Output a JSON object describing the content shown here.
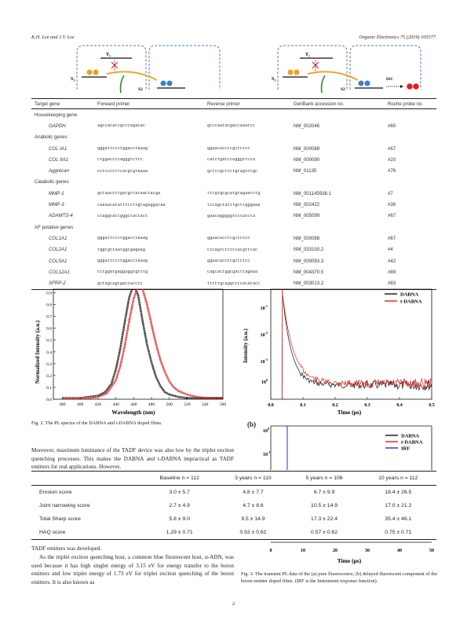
{
  "header": {
    "authors": "K.H. Lee and J.Y. Lee",
    "journal": "Organic Electronics 75 (2019) 105377"
  },
  "scheme": {
    "t1": "T",
    "t1_sub": "1",
    "s1": "S",
    "s1_sub": "1",
    "s2": "S2",
    "isc": "ISC"
  },
  "table1": {
    "headers": [
      "Target gene",
      "Forward primer",
      "Reverse primer",
      "GenBank accession no.",
      "Roche probe no."
    ],
    "groups": [
      {
        "title": "Housekeeping gene",
        "rows": [
          [
            "GAPDH",
            "agccacatcgctcagacac",
            "gcccaatacgaccaaatcc",
            "NM_002046",
            "#60"
          ]
        ]
      },
      {
        "title": "Anabolic genes",
        "rows": [
          [
            "COL IA1",
            "gggattccctggacctaaag",
            "ggaacacctcgctctcc",
            "NM_000088",
            "#67"
          ],
          [
            "COL IIA1",
            "ctggaccccagggtcttc",
            "catctgatccagggttcca",
            "NM_000090",
            "#20"
          ],
          [
            "Aggrecan",
            "cctccccttcacgtgtaaaa",
            "gctccgcttctgtagtctgc",
            "NM_01135",
            "#76"
          ]
        ]
      },
      {
        "title": "Catabolic genes",
        "rows": [
          [
            "MMP-1",
            "gctaaccttgatgctataactacga",
            "tttgtgcgcatgtagaatctg",
            "NM_001145938.1",
            "#7"
          ],
          [
            "MMP-3",
            "caaaacatatttctttgtagaggacaa",
            "ttcagctatttgcttgggaaa",
            "NM_002422",
            "#36"
          ],
          [
            "ADAMTS-4",
            "ccaggcactgggctactact",
            "gaacagggggtcccatcta",
            "NM_005099",
            "#67"
          ]
        ]
      },
      {
        "title": "AF putative genes",
        "rows": [
          [
            "COL1A1",
            "gggattccctggacctaaag",
            "ggaacacctcgctctcc",
            "NM_000088",
            "#67"
          ],
          [
            "COL2A1",
            "tggtgctaatggcgagaag",
            "cccagtctctccacgttcac",
            "NM_033150.2",
            "#4"
          ],
          [
            "COL5A1",
            "gggattccctggacctaaag",
            "ggaacacctcgctctcc",
            "NM_000093.3",
            "#42"
          ],
          [
            "COL12A1",
            "cctggatgaggaggtgtttg",
            "cagcactggcgacttagaaa",
            "NM_004370.5",
            "#89"
          ],
          [
            "SFRP-2",
            "gctagcagcgaccacctc",
            "tttttgcaggcttcacatacc",
            "NM_003013.2",
            "#83"
          ]
        ]
      }
    ]
  },
  "figure2": {
    "caption": "Fig. 2. The PL spectra of the DABNA and t-DABNA doped films.",
    "chart_data": {
      "type": "line",
      "xlabel": "Wavelength (nm)",
      "ylabel": "Normalized Intensity (a.u.)",
      "xlim": [
        370,
        560
      ],
      "ylim": [
        0,
        0.93
      ],
      "x_ticks": [
        "380",
        "400",
        "420",
        "440",
        "460",
        "480",
        "500",
        "520",
        "540",
        "560"
      ],
      "y_ticks": [
        "0.0",
        "0.1",
        "0.2",
        "0.3",
        "0.4",
        "0.5",
        "0.6",
        "0.7",
        "0.8",
        "0.9"
      ],
      "series": [
        {
          "color": "#111111",
          "x": [
            380,
            400,
            410,
            420,
            428,
            435,
            440,
            445,
            450,
            455,
            460,
            465,
            470,
            475,
            480,
            485,
            490,
            495,
            500,
            510,
            520,
            530,
            540,
            550,
            560
          ],
          "y": [
            0.01,
            0.01,
            0.02,
            0.03,
            0.06,
            0.13,
            0.25,
            0.43,
            0.65,
            0.86,
            0.97,
            0.88,
            0.66,
            0.46,
            0.31,
            0.19,
            0.11,
            0.06,
            0.04,
            0.02,
            0.01,
            0.01,
            0.01,
            0.01,
            0.01
          ]
        },
        {
          "color": "#e02020",
          "x": [
            380,
            400,
            410,
            420,
            430,
            440,
            445,
            450,
            455,
            460,
            465,
            470,
            475,
            480,
            485,
            490,
            495,
            500,
            505,
            510,
            520,
            530,
            540,
            550,
            560
          ],
          "y": [
            0.01,
            0.01,
            0.01,
            0.02,
            0.05,
            0.16,
            0.28,
            0.45,
            0.66,
            0.85,
            0.96,
            0.93,
            0.8,
            0.63,
            0.47,
            0.33,
            0.23,
            0.15,
            0.1,
            0.07,
            0.04,
            0.02,
            0.01,
            0.01,
            0.01
          ]
        }
      ]
    }
  },
  "figure3a": {
    "chart_data": {
      "type": "line",
      "xlabel": "Time (μs)",
      "ylabel": "Intensity (a.u.)",
      "xlim": [
        0,
        0.5
      ],
      "x_ticks": [
        "0.0",
        "0.1",
        "0.2",
        "0.3",
        "0.4",
        "0.5"
      ],
      "y_ticks_exp": [
        "-1",
        "-2",
        "-3",
        "0"
      ],
      "series": [
        {
          "name": "DABNA",
          "color": "#111111"
        },
        {
          "name": "t-DABNA",
          "color": "#e02020"
        }
      ]
    }
  },
  "figure3b": {
    "panel": "(b)",
    "y_ticks_exp": [
      "0",
      "-1"
    ],
    "x_ticks": [
      "0",
      "10",
      "20",
      "30",
      "40",
      "50"
    ],
    "xlabel": "Time (μs)",
    "legend": [
      {
        "name": "DABNA",
        "color": "#111111"
      },
      {
        "name": "t-DABNA",
        "color": "#e02020"
      },
      {
        "name": "IRF",
        "color": "#2233cc"
      }
    ]
  },
  "figure3_caption": "Fig. 3. The transient PL data of the (a) pure fluorescence, (b) delayed fluorescent component of the boron emitter doped films. (IRF is the Instrument response function).",
  "text": {
    "para1": "Moreover, maximum luminance of the TADF device was also low by the triplet exciton quenching processes. This makes the DABNA and t-DABNA impractical as TADF emitters for real applications. However,",
    "para2_top": "TADF emitters was developed.",
    "para3": "As the triplet exciton quenching host, a common blue fluorescent host, α-ADN, was used because it has high singlet energy of 3.15 eV for energy transfer to the boron emitters and low triplet energy of 1.73 eV for triplet exciton quenching of the boron emitters. It is also known as"
  },
  "table2": {
    "headers": [
      "",
      "Baseline n = 112",
      "3 years n = 110",
      "5 years n = 106",
      "10 years n = 112"
    ],
    "rows": [
      [
        "Erosion score",
        "3.0 ± 5.7",
        "4.8 ± 7.7",
        "6.7 ± 9.9",
        "18.4 ± 26.5"
      ],
      [
        "Joint narrowing score",
        "2.7 ± 4.9",
        "4.7 ± 8.6",
        "10.5 ± 14.9",
        "17.0 ± 21.2"
      ],
      [
        "Total Sharp score",
        "5.8 ± 9.0",
        "9.5 ± 14.9",
        "17.3 ± 22.4",
        "35.4 ± 46.1"
      ],
      [
        "HAQ score",
        "1.29 ± 0.71",
        "0.53 ± 0.62",
        "0.57 ± 0.62",
        "0.75 ± 0.71"
      ]
    ]
  },
  "page_number": "2"
}
